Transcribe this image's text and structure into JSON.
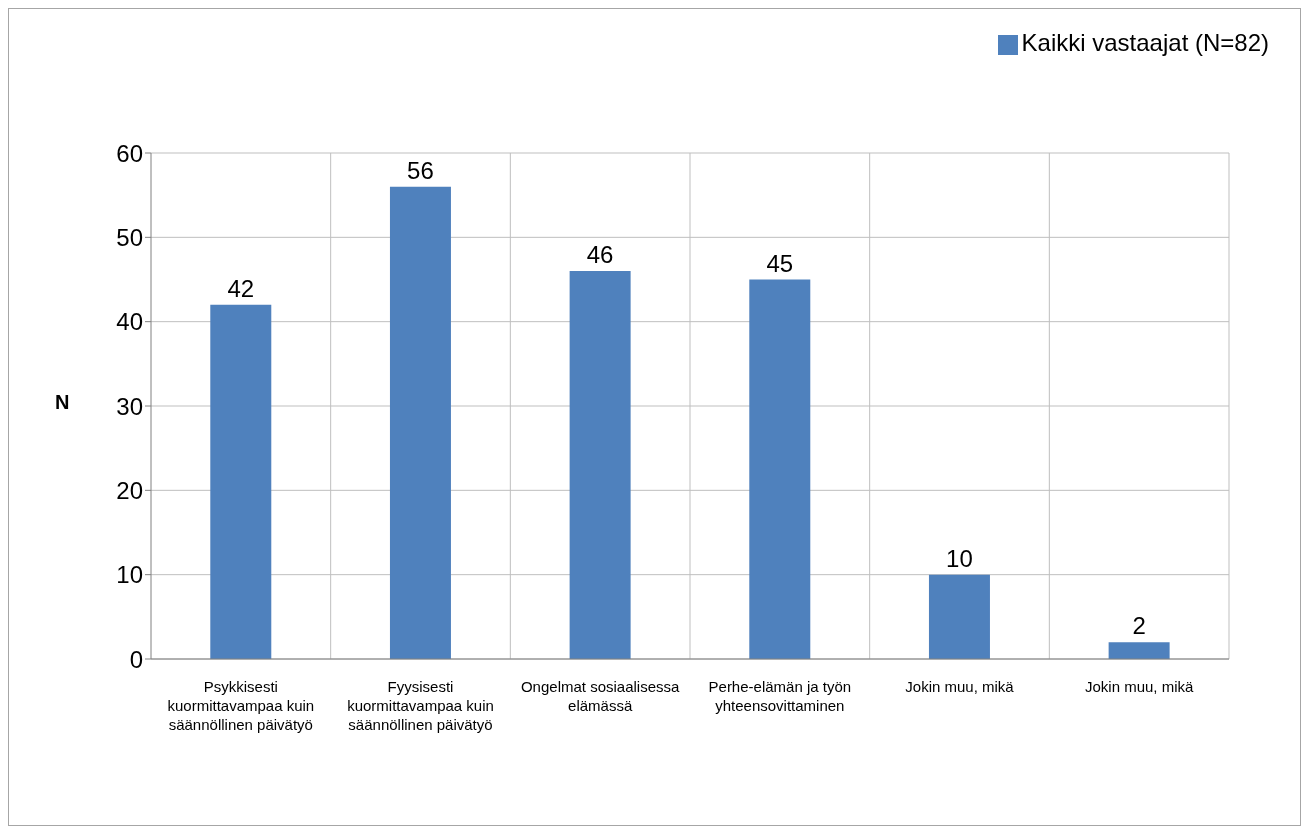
{
  "chart_data": {
    "type": "bar",
    "ylabel": "N",
    "categories": [
      "Psykkisesti kuormittavampaa kuin säännöllinen päivätyö",
      "Fyysisesti kuormittavampaa kuin säännöllinen päivätyö",
      "Ongelmat sosiaalisessa elämässä",
      "Perhe-elämän ja työn yhteensovittaminen",
      "Jokin muu, mikä",
      "Jokin muu, mikä"
    ],
    "series": [
      {
        "name": "Kaikki vastaajat (N=82)",
        "color": "#4f81bd",
        "values": [
          42,
          56,
          46,
          45,
          10,
          2
        ]
      }
    ],
    "ylim": [
      0,
      60
    ],
    "yticks": [
      0,
      10,
      20,
      30,
      40,
      50,
      60
    ],
    "grid": true,
    "legend": "top right",
    "data_labels": true
  }
}
